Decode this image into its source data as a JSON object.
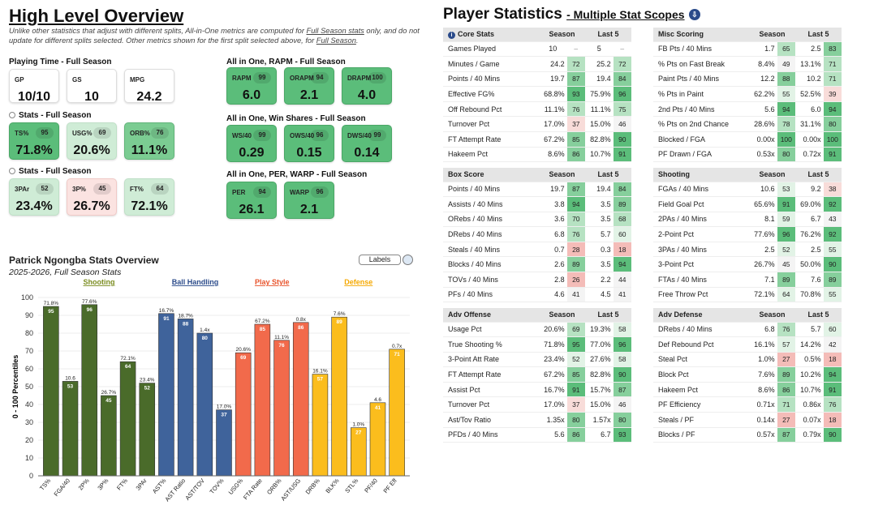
{
  "overview": {
    "title": "High Level Overview",
    "note_prefix": "Unlike other statistics that adjust with different splits, All-in-One metrics are computed for ",
    "note_link1": "Full Season stats",
    "note_mid": " only, and do not update for different splits selected. Other metrics shown for the first split selected above, for ",
    "note_link2": "Full Season",
    "note_end": ".",
    "playing_time": {
      "title": "Playing Time - Full Season",
      "cards": [
        {
          "label": "GP",
          "value": "10/10"
        },
        {
          "label": "GS",
          "value": "10"
        },
        {
          "label": "MPG",
          "value": "24.2"
        }
      ]
    },
    "stats1": {
      "title": "Stats - Full Season",
      "cards": [
        {
          "label": "TS%",
          "value": "71.8%",
          "pct": "95"
        },
        {
          "label": "USG%",
          "value": "20.6%",
          "pct": "69"
        },
        {
          "label": "ORB%",
          "value": "11.1%",
          "pct": "76"
        }
      ]
    },
    "stats2": {
      "title": "Stats - Full Season",
      "cards": [
        {
          "label": "3PAr",
          "value": "23.4%",
          "pct": "52"
        },
        {
          "label": "3P%",
          "value": "26.7%",
          "pct": "45"
        },
        {
          "label": "FT%",
          "value": "72.1%",
          "pct": "64"
        }
      ]
    },
    "rapm": {
      "title": "All in One, RAPM - Full Season",
      "cards": [
        {
          "label": "RAPM",
          "value": "6.0",
          "pct": "99"
        },
        {
          "label": "ORAPM",
          "value": "2.1",
          "pct": "94"
        },
        {
          "label": "DRAPM",
          "value": "4.0",
          "pct": "100"
        }
      ]
    },
    "ws": {
      "title": "All in One, Win Shares - Full Season",
      "cards": [
        {
          "label": "WS/40",
          "value": "0.29",
          "pct": "99"
        },
        {
          "label": "OWS/40",
          "value": "0.15",
          "pct": "96"
        },
        {
          "label": "DWS/40",
          "value": "0.14",
          "pct": "99"
        }
      ]
    },
    "per": {
      "title": "All in One, PER, WARP - Full Season",
      "cards": [
        {
          "label": "PER",
          "value": "26.1",
          "pct": "94"
        },
        {
          "label": "WARP",
          "value": "2.1",
          "pct": "96"
        }
      ]
    }
  },
  "chart_section": {
    "title": "Patrick Ngongba Stats Overview",
    "subtitle": "2025-2026, Full Season Stats",
    "labels_button": "Labels",
    "groups": [
      {
        "name": "Shooting",
        "color": "#7a8c1f"
      },
      {
        "name": "Ball Handling",
        "color": "#2a4a8a"
      },
      {
        "name": "Play Style",
        "color": "#e8532b"
      },
      {
        "name": "Defense",
        "color": "#f5a800"
      }
    ]
  },
  "chart_data": {
    "type": "bar",
    "ylabel": "0 - 100 Percentiles",
    "ylim": [
      0,
      100
    ],
    "yticks": [
      0,
      10,
      20,
      30,
      40,
      50,
      60,
      70,
      80,
      90,
      100
    ],
    "categories": [
      "TS%",
      "FGA/40",
      "2P%",
      "3P%",
      "FT%",
      "3PAr",
      "AST%",
      "AST Ratio",
      "AST/TOV",
      "TOV%",
      "USG%",
      "FTA Rate",
      "ORB%",
      "AST/USG",
      "DRB%",
      "BLK%",
      "STL%",
      "PF/40",
      "PF Eff"
    ],
    "values": [
      95,
      53,
      96,
      45,
      64,
      52,
      91,
      88,
      80,
      37,
      69,
      85,
      76,
      86,
      57,
      89,
      27,
      41,
      71
    ],
    "stat_labels": [
      "71.8%",
      "10.6",
      "77.6%",
      "26.7%",
      "72.1%",
      "23.4%",
      "16.7%",
      "18.7%",
      "1.4x",
      "17.0%",
      "20.6%",
      "67.2%",
      "11.1%",
      "0.8x",
      "16.1%",
      "7.6%",
      "1.0%",
      "4.6",
      "0.7x"
    ],
    "group_index": [
      0,
      0,
      0,
      0,
      0,
      0,
      1,
      1,
      1,
      1,
      2,
      2,
      2,
      2,
      3,
      3,
      3,
      3,
      3
    ],
    "colors": [
      "#4a6b2a",
      "#3f639b",
      "#f26a4b",
      "#fbbd1d"
    ]
  },
  "player_stats": {
    "title": "Player Statistics",
    "subtitle": "- Multiple Stat Scopes",
    "download_icon": "download-icon",
    "season_label": "Season",
    "last5_label": "Last 5",
    "tables": [
      {
        "title": "Core Stats",
        "info": true,
        "rows": [
          {
            "name": "Games Played",
            "s": "10",
            "sp": "",
            "l": "5",
            "lp": ""
          },
          {
            "name": "Minutes / Game",
            "s": "24.2",
            "sp": "72",
            "l": "25.2",
            "lp": "72"
          },
          {
            "name": "Points / 40 Mins",
            "s": "19.7",
            "sp": "87",
            "l": "19.4",
            "lp": "84"
          },
          {
            "name": "Effective FG%",
            "s": "68.8%",
            "sp": "93",
            "l": "75.9%",
            "lp": "96"
          },
          {
            "name": "Off Rebound Pct",
            "s": "11.1%",
            "sp": "76",
            "l": "11.1%",
            "lp": "75"
          },
          {
            "name": "Turnover Pct",
            "s": "17.0%",
            "sp": "37",
            "l": "15.0%",
            "lp": "46"
          },
          {
            "name": "FT Attempt Rate",
            "s": "67.2%",
            "sp": "85",
            "l": "82.8%",
            "lp": "90"
          },
          {
            "name": "Hakeem Pct",
            "s": "8.6%",
            "sp": "86",
            "l": "10.7%",
            "lp": "91"
          }
        ]
      },
      {
        "title": "Misc Scoring",
        "rows": [
          {
            "name": "FB Pts / 40 Mins",
            "s": "1.7",
            "sp": "65",
            "l": "2.5",
            "lp": "83"
          },
          {
            "name": "% Pts on Fast Break",
            "s": "8.4%",
            "sp": "49",
            "l": "13.1%",
            "lp": "71"
          },
          {
            "name": "Paint Pts / 40 Mins",
            "s": "12.2",
            "sp": "88",
            "l": "10.2",
            "lp": "71"
          },
          {
            "name": "% Pts in Paint",
            "s": "62.2%",
            "sp": "55",
            "l": "52.5%",
            "lp": "39"
          },
          {
            "name": "2nd Pts / 40 Mins",
            "s": "5.6",
            "sp": "94",
            "l": "6.0",
            "lp": "94"
          },
          {
            "name": "% Pts on 2nd Chance",
            "s": "28.6%",
            "sp": "78",
            "l": "31.1%",
            "lp": "80"
          },
          {
            "name": "Blocked / FGA",
            "s": "0.00x",
            "sp": "100",
            "l": "0.00x",
            "lp": "100"
          },
          {
            "name": "PF Drawn / FGA",
            "s": "0.53x",
            "sp": "80",
            "l": "0.72x",
            "lp": "91"
          }
        ]
      },
      {
        "title": "Box Score",
        "rows": [
          {
            "name": "Points / 40 Mins",
            "s": "19.7",
            "sp": "87",
            "l": "19.4",
            "lp": "84"
          },
          {
            "name": "Assists / 40 Mins",
            "s": "3.8",
            "sp": "94",
            "l": "3.5",
            "lp": "89"
          },
          {
            "name": "ORebs / 40 Mins",
            "s": "3.6",
            "sp": "70",
            "l": "3.5",
            "lp": "68"
          },
          {
            "name": "DRebs / 40 Mins",
            "s": "6.8",
            "sp": "76",
            "l": "5.7",
            "lp": "60"
          },
          {
            "name": "Steals / 40 Mins",
            "s": "0.7",
            "sp": "28",
            "l": "0.3",
            "lp": "18"
          },
          {
            "name": "Blocks / 40 Mins",
            "s": "2.6",
            "sp": "89",
            "l": "3.5",
            "lp": "94"
          },
          {
            "name": "TOVs / 40 Mins",
            "s": "2.8",
            "sp": "26",
            "l": "2.2",
            "lp": "44"
          },
          {
            "name": "PFs / 40 Mins",
            "s": "4.6",
            "sp": "41",
            "l": "4.5",
            "lp": "41"
          }
        ]
      },
      {
        "title": "Shooting",
        "rows": [
          {
            "name": "FGAs / 40 Mins",
            "s": "10.6",
            "sp": "53",
            "l": "9.2",
            "lp": "38"
          },
          {
            "name": "Field Goal Pct",
            "s": "65.6%",
            "sp": "91",
            "l": "69.0%",
            "lp": "92"
          },
          {
            "name": "2PAs / 40 Mins",
            "s": "8.1",
            "sp": "59",
            "l": "6.7",
            "lp": "43"
          },
          {
            "name": "2-Point Pct",
            "s": "77.6%",
            "sp": "96",
            "l": "76.2%",
            "lp": "92"
          },
          {
            "name": "3PAs / 40 Mins",
            "s": "2.5",
            "sp": "52",
            "l": "2.5",
            "lp": "55"
          },
          {
            "name": "3-Point Pct",
            "s": "26.7%",
            "sp": "45",
            "l": "50.0%",
            "lp": "90"
          },
          {
            "name": "FTAs / 40 Mins",
            "s": "7.1",
            "sp": "89",
            "l": "7.6",
            "lp": "89"
          },
          {
            "name": "Free Throw Pct",
            "s": "72.1%",
            "sp": "64",
            "l": "70.8%",
            "lp": "55"
          }
        ]
      },
      {
        "title": "Adv Offense",
        "rows": [
          {
            "name": "Usage Pct",
            "s": "20.6%",
            "sp": "69",
            "l": "19.3%",
            "lp": "58"
          },
          {
            "name": "True Shooting %",
            "s": "71.8%",
            "sp": "95",
            "l": "77.0%",
            "lp": "96"
          },
          {
            "name": "3-Point Att Rate",
            "s": "23.4%",
            "sp": "52",
            "l": "27.6%",
            "lp": "58"
          },
          {
            "name": "FT Attempt Rate",
            "s": "67.2%",
            "sp": "85",
            "l": "82.8%",
            "lp": "90"
          },
          {
            "name": "Assist Pct",
            "s": "16.7%",
            "sp": "91",
            "l": "15.7%",
            "lp": "87"
          },
          {
            "name": "Turnover Pct",
            "s": "17.0%",
            "sp": "37",
            "l": "15.0%",
            "lp": "46"
          },
          {
            "name": "Ast/Tov Ratio",
            "s": "1.35x",
            "sp": "80",
            "l": "1.57x",
            "lp": "80"
          },
          {
            "name": "PFDs / 40 Mins",
            "s": "5.6",
            "sp": "86",
            "l": "6.7",
            "lp": "93"
          }
        ]
      },
      {
        "title": "Adv Defense",
        "rows": [
          {
            "name": "DRebs / 40 Mins",
            "s": "6.8",
            "sp": "76",
            "l": "5.7",
            "lp": "60"
          },
          {
            "name": "Def Rebound Pct",
            "s": "16.1%",
            "sp": "57",
            "l": "14.2%",
            "lp": "42"
          },
          {
            "name": "Steal Pct",
            "s": "1.0%",
            "sp": "27",
            "l": "0.5%",
            "lp": "18"
          },
          {
            "name": "Block Pct",
            "s": "7.6%",
            "sp": "89",
            "l": "10.2%",
            "lp": "94"
          },
          {
            "name": "Hakeem Pct",
            "s": "8.6%",
            "sp": "86",
            "l": "10.7%",
            "lp": "91"
          },
          {
            "name": "PF Efficiency",
            "s": "0.71x",
            "sp": "71",
            "l": "0.86x",
            "lp": "76"
          },
          {
            "name": "Steals / PF",
            "s": "0.14x",
            "sp": "27",
            "l": "0.07x",
            "lp": "18"
          },
          {
            "name": "Blocks / PF",
            "s": "0.57x",
            "sp": "87",
            "l": "0.79x",
            "lp": "90"
          }
        ]
      }
    ]
  }
}
